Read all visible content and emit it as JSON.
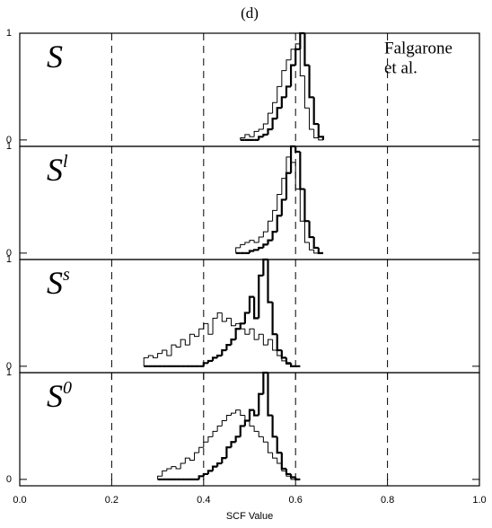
{
  "chart_data": [
    {
      "type": "histogram",
      "title": "(d)",
      "label": "S",
      "label_sup": "",
      "annotation": [
        "Falgarone",
        "et al."
      ],
      "xlim": [
        0,
        1
      ],
      "ylim": [
        -0.06,
        1.0
      ],
      "yticks": [
        0,
        1
      ],
      "dashed_lines": [
        0.2,
        0.4,
        0.6,
        0.8
      ],
      "bins": [
        0.48,
        0.49,
        0.5,
        0.51,
        0.52,
        0.53,
        0.54,
        0.55,
        0.56,
        0.57,
        0.58,
        0.59,
        0.6,
        0.61,
        0.62,
        0.63,
        0.64,
        0.65,
        0.66
      ],
      "series": [
        {
          "color": "#000000",
          "line_width": 2.2,
          "values": [
            0,
            0,
            0,
            0,
            0.03,
            0.05,
            0.1,
            0.2,
            0.3,
            0.4,
            0.5,
            0.7,
            0.85,
            1.0,
            0.7,
            0.4,
            0.15,
            0.03
          ]
        },
        {
          "color": "#000000",
          "line_width": 1,
          "values": [
            0.02,
            0.05,
            0.03,
            0.08,
            0.1,
            0.15,
            0.25,
            0.35,
            0.5,
            0.65,
            0.75,
            0.85,
            0.9,
            0.6,
            0.3,
            0.1,
            0.02,
            0
          ]
        }
      ]
    },
    {
      "type": "histogram",
      "label": "S",
      "label_sup": "l",
      "xlim": [
        0,
        1
      ],
      "ylim": [
        -0.06,
        1.0
      ],
      "yticks": [
        0,
        1
      ],
      "dashed_lines": [
        0.2,
        0.4,
        0.6,
        0.8
      ],
      "bins": [
        0.47,
        0.48,
        0.49,
        0.5,
        0.51,
        0.52,
        0.53,
        0.54,
        0.55,
        0.56,
        0.57,
        0.58,
        0.59,
        0.6,
        0.61,
        0.62,
        0.63,
        0.64,
        0.65,
        0.66
      ],
      "series": [
        {
          "color": "#000000",
          "line_width": 2.2,
          "values": [
            0,
            0,
            0,
            0.02,
            0.03,
            0.05,
            0.08,
            0.12,
            0.2,
            0.35,
            0.5,
            0.75,
            1.0,
            0.95,
            0.6,
            0.3,
            0.15,
            0.05,
            0
          ]
        },
        {
          "color": "#000000",
          "line_width": 1,
          "values": [
            0.05,
            0.08,
            0.1,
            0.12,
            0.1,
            0.15,
            0.2,
            0.3,
            0.4,
            0.55,
            0.7,
            0.9,
            0.85,
            0.6,
            0.3,
            0.1,
            0.03,
            0,
            0
          ]
        }
      ]
    },
    {
      "type": "histogram",
      "label": "S",
      "label_sup": "s",
      "xlim": [
        0,
        1
      ],
      "ylim": [
        -0.06,
        1.0
      ],
      "yticks": [
        0,
        1
      ],
      "dashed_lines": [
        0.2,
        0.4,
        0.6,
        0.8
      ],
      "bins": [
        0.27,
        0.28,
        0.29,
        0.3,
        0.31,
        0.32,
        0.33,
        0.34,
        0.35,
        0.36,
        0.37,
        0.38,
        0.39,
        0.4,
        0.41,
        0.42,
        0.43,
        0.44,
        0.45,
        0.46,
        0.47,
        0.48,
        0.49,
        0.5,
        0.51,
        0.52,
        0.53,
        0.54,
        0.55,
        0.56,
        0.57,
        0.58,
        0.59,
        0.6,
        0.61
      ],
      "series": [
        {
          "color": "#000000",
          "line_width": 2.2,
          "values": [
            0,
            0,
            0,
            0,
            0,
            0,
            0,
            0,
            0,
            0,
            0,
            0,
            0,
            0.03,
            0.05,
            0.08,
            0.1,
            0.15,
            0.2,
            0.25,
            0.35,
            0.4,
            0.5,
            0.65,
            0.45,
            0.85,
            1.0,
            0.6,
            0.3,
            0.15,
            0.08,
            0.03,
            0,
            0
          ]
        },
        {
          "color": "#000000",
          "line_width": 1,
          "values": [
            0.08,
            0.1,
            0.08,
            0.12,
            0.15,
            0.1,
            0.2,
            0.18,
            0.25,
            0.2,
            0.3,
            0.28,
            0.35,
            0.4,
            0.3,
            0.45,
            0.5,
            0.42,
            0.45,
            0.38,
            0.4,
            0.35,
            0.3,
            0.35,
            0.25,
            0.3,
            0.2,
            0.25,
            0.15,
            0.1,
            0.05,
            0.02,
            0,
            0
          ]
        }
      ]
    },
    {
      "type": "histogram",
      "label": "S",
      "label_sup": "0",
      "xlabel": "SCF Value",
      "xlim": [
        0,
        1
      ],
      "ylim": [
        -0.06,
        1.0
      ],
      "yticks": [
        0,
        1
      ],
      "dashed_lines": [
        0.2,
        0.4,
        0.6,
        0.8
      ],
      "xticks": [
        {
          "value": 0,
          "label": "0.0"
        },
        0.2,
        0.4,
        0.6,
        0.8,
        {
          "value": 1,
          "label": "1.0"
        }
      ],
      "bins": [
        0.3,
        0.31,
        0.32,
        0.33,
        0.34,
        0.35,
        0.36,
        0.37,
        0.38,
        0.39,
        0.4,
        0.41,
        0.42,
        0.43,
        0.44,
        0.45,
        0.46,
        0.47,
        0.48,
        0.49,
        0.5,
        0.51,
        0.52,
        0.53,
        0.54,
        0.55,
        0.56,
        0.57,
        0.58,
        0.59,
        0.6,
        0.61
      ],
      "series": [
        {
          "color": "#000000",
          "line_width": 2.2,
          "values": [
            0,
            0,
            0,
            0,
            0,
            0,
            0,
            0,
            0,
            0.03,
            0.05,
            0.08,
            0.12,
            0.15,
            0.2,
            0.3,
            0.35,
            0.4,
            0.5,
            0.55,
            0.65,
            0.6,
            0.8,
            1.0,
            0.6,
            0.4,
            0.25,
            0.1,
            0.05,
            0.02,
            0
          ]
        },
        {
          "color": "#000000",
          "line_width": 1,
          "values": [
            0.03,
            0.08,
            0.1,
            0.12,
            0.1,
            0.15,
            0.2,
            0.18,
            0.25,
            0.3,
            0.35,
            0.4,
            0.45,
            0.5,
            0.55,
            0.6,
            0.62,
            0.65,
            0.6,
            0.55,
            0.5,
            0.45,
            0.4,
            0.35,
            0.25,
            0.2,
            0.15,
            0.08,
            0.03,
            0,
            0
          ]
        }
      ]
    }
  ]
}
